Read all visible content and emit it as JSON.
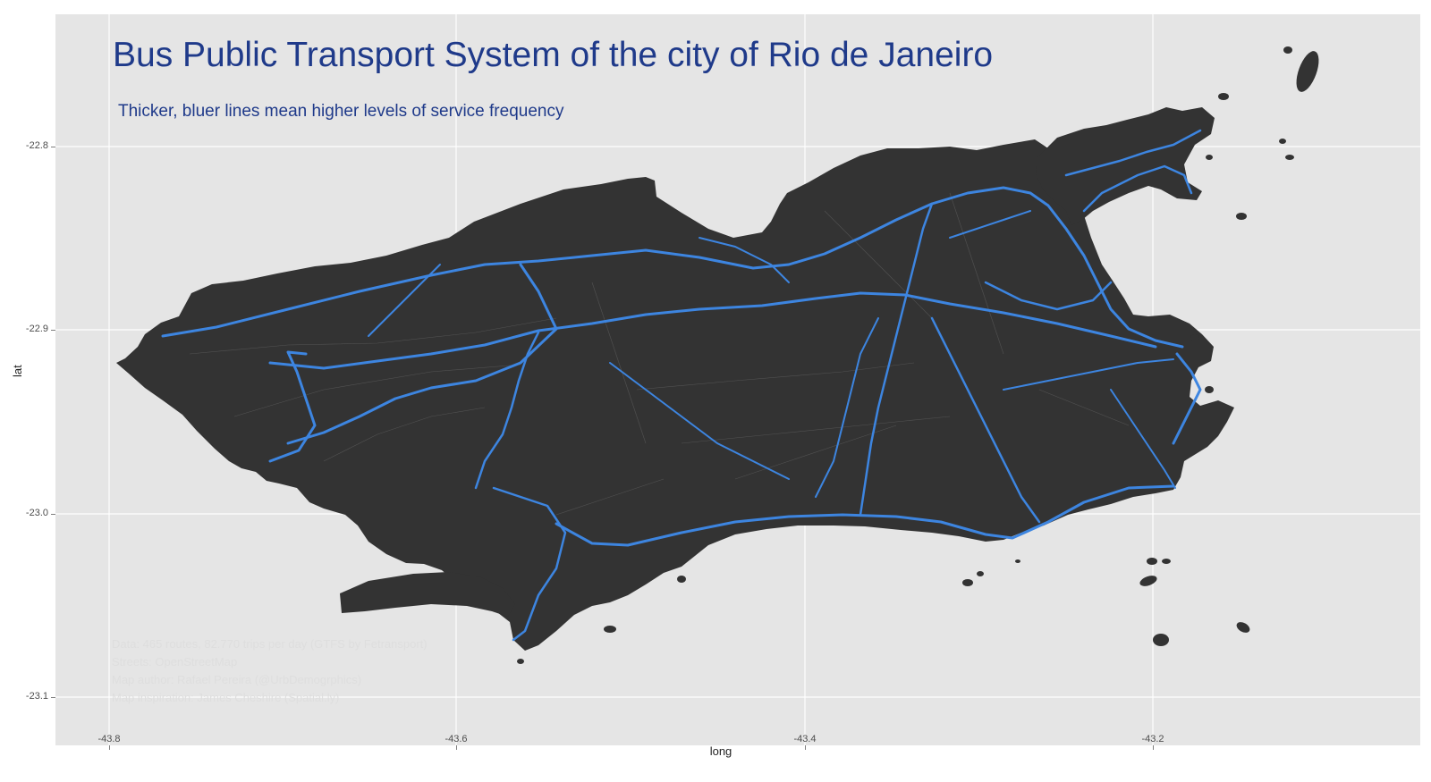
{
  "title": "Bus Public Transport System of the city of Rio de Janeiro",
  "subtitle": "Thicker, bluer lines mean higher levels of service frequency",
  "credits": [
    "Data: 465 routes, 82.770 trips per day (GTFS by Fetransport)",
    "Streets: OpenStreetMap",
    "Map author: Rafael Pereira (@UrbDemogrphics)",
    "Map inspiration: James Cheshire (Spatial.ly)"
  ],
  "axes": {
    "xlabel": "long",
    "ylabel": "lat",
    "x_ticks": [
      "-43.8",
      "-43.6",
      "-43.4",
      "-43.2"
    ],
    "y_ticks": [
      "-22.8",
      "-22.9",
      "-23.0",
      "-23.1"
    ]
  },
  "colors": {
    "panel_background": "#e5e5e5",
    "grid": "#ffffff",
    "land": "#333333",
    "bus_route": "#3d85e0",
    "title_text": "#1f3a8a"
  }
}
